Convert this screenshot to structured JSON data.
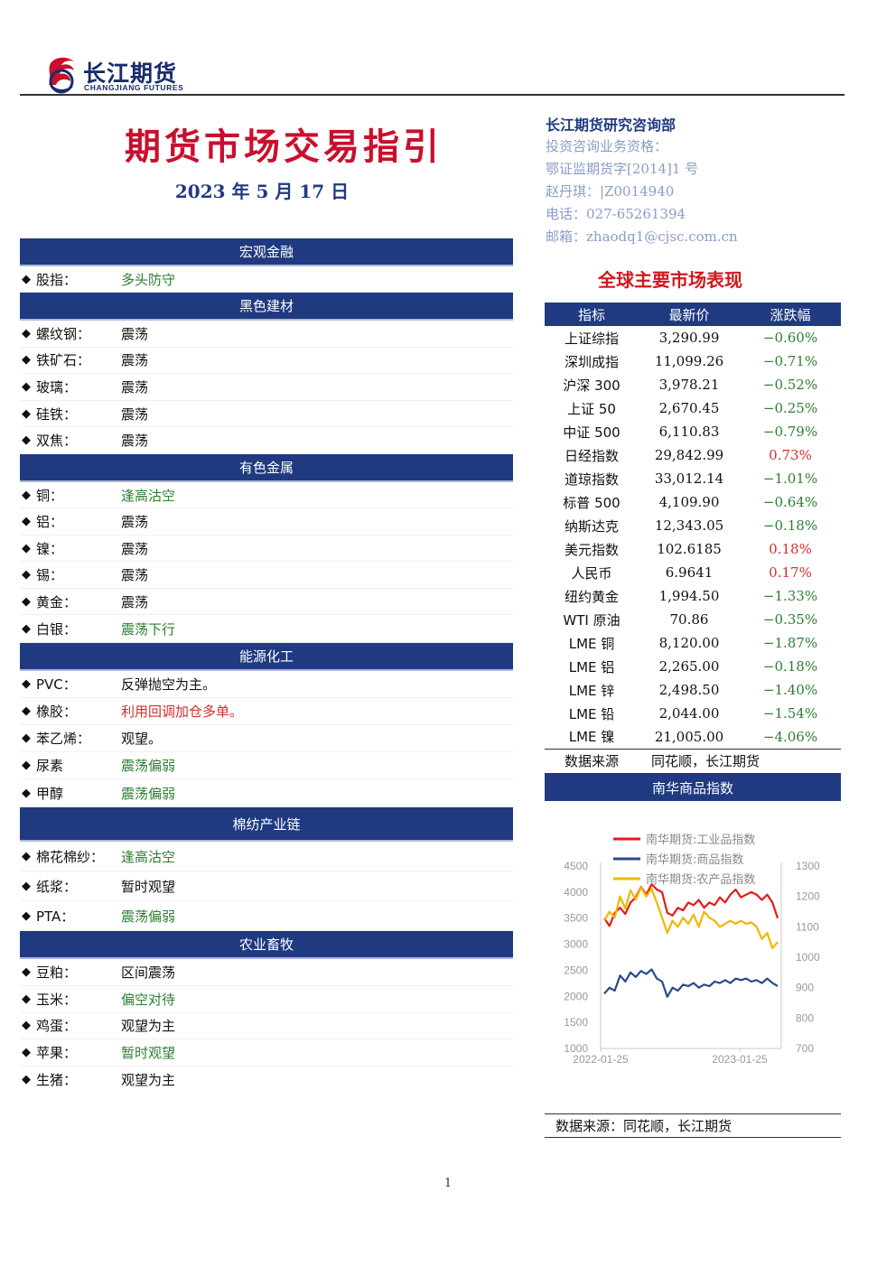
{
  "header": {
    "company_cn": "长江期货",
    "company_en": "CHANGJIANG FUTURES",
    "title": "期货市场交易指引",
    "date": "2023 年 5 月 17 日"
  },
  "contact": {
    "dept": "长江期货研究咨询部",
    "lines": [
      "投资咨询业务资格：",
      "鄂证监期货字[2014]1 号",
      "赵丹琪：|Z0014940",
      "电话：027-65261394",
      "邮箱：zhaodq1@cjsc.com.cn"
    ]
  },
  "sections": [
    {
      "title": "宏观金融",
      "items": [
        {
          "label": "股指：",
          "value": "多头防守",
          "color": "#2e7d32"
        }
      ]
    },
    {
      "title": "黑色建材",
      "items": [
        {
          "label": "螺纹钢：",
          "value": "震荡",
          "color": "#111111"
        },
        {
          "label": "铁矿石：",
          "value": "震荡",
          "color": "#111111"
        },
        {
          "label": "玻璃：",
          "value": "震荡",
          "color": "#111111"
        },
        {
          "label": "硅铁：",
          "value": "震荡",
          "color": "#111111"
        },
        {
          "label": "双焦：",
          "value": "震荡",
          "color": "#111111"
        }
      ]
    },
    {
      "title": "有色金属",
      "items": [
        {
          "label": "铜：",
          "value": "逢高沽空",
          "color": "#2e7d32"
        },
        {
          "label": "铝：",
          "value": "震荡",
          "color": "#111111"
        },
        {
          "label": "镍：",
          "value": "震荡",
          "color": "#111111"
        },
        {
          "label": "锡：",
          "value": "震荡",
          "color": "#111111"
        },
        {
          "label": "黄金：",
          "value": "震荡",
          "color": "#111111"
        },
        {
          "label": "白银：",
          "value": "震荡下行",
          "color": "#2e7d32"
        }
      ]
    },
    {
      "title": "能源化工",
      "items": [
        {
          "label": "PVC：",
          "value": "反弹抛空为主。",
          "color": "#111111"
        },
        {
          "label": "橡胶：",
          "value": "利用回调加仓多单。",
          "color": "#d32f2f"
        },
        {
          "label": "苯乙烯：",
          "value": "观望。",
          "color": "#111111"
        },
        {
          "label": "尿素",
          "value": "震荡偏弱",
          "color": "#2e7d32"
        },
        {
          "label": "甲醇",
          "value": "震荡偏弱",
          "color": "#2e7d32"
        }
      ]
    },
    {
      "title": "棉纺产业链",
      "items": [
        {
          "label": "棉花棉纱：",
          "value": "逢高沽空",
          "color": "#2e7d32"
        },
        {
          "label": "纸浆：",
          "value": "暂时观望",
          "color": "#111111"
        },
        {
          "label": "PTA：",
          "value": "震荡偏弱",
          "color": "#2e7d32"
        }
      ]
    },
    {
      "title": "农业畜牧",
      "items": [
        {
          "label": "豆粕：",
          "value": "区间震荡",
          "color": "#111111"
        },
        {
          "label": "玉米：",
          "value": "偏空对待",
          "color": "#2e7d32"
        },
        {
          "label": "鸡蛋：",
          "value": "观望为主",
          "color": "#111111"
        },
        {
          "label": "苹果：",
          "value": "暂时观望",
          "color": "#2e7d32"
        },
        {
          "label": "生猪：",
          "value": "观望为主",
          "color": "#111111"
        }
      ]
    }
  ],
  "market": {
    "title": "全球主要市场表现",
    "headers": [
      "指标",
      "最新价",
      "涨跌幅"
    ],
    "rows": [
      {
        "name": "上证综指",
        "price": "3,290.99",
        "change": "−0.60%",
        "dir": "down"
      },
      {
        "name": "深圳成指",
        "price": "11,099.26",
        "change": "−0.71%",
        "dir": "down"
      },
      {
        "name": "沪深 300",
        "price": "3,978.21",
        "change": "−0.52%",
        "dir": "down"
      },
      {
        "name": "上证 50",
        "price": "2,670.45",
        "change": "−0.25%",
        "dir": "down"
      },
      {
        "name": "中证 500",
        "price": "6,110.83",
        "change": "−0.79%",
        "dir": "down"
      },
      {
        "name": "日经指数",
        "price": "29,842.99",
        "change": "0.73%",
        "dir": "up"
      },
      {
        "name": "道琼指数",
        "price": "33,012.14",
        "change": "−1.01%",
        "dir": "down"
      },
      {
        "name": "标普 500",
        "price": "4,109.90",
        "change": "−0.64%",
        "dir": "down"
      },
      {
        "name": "纳斯达克",
        "price": "12,343.05",
        "change": "−0.18%",
        "dir": "down"
      },
      {
        "name": "美元指数",
        "price": "102.6185",
        "change": "0.18%",
        "dir": "up"
      },
      {
        "name": "人民币",
        "price": "6.9641",
        "change": "0.17%",
        "dir": "up"
      },
      {
        "name": "纽约黄金",
        "price": "1,994.50",
        "change": "−1.33%",
        "dir": "down"
      },
      {
        "name": "WTI 原油",
        "price": "70.86",
        "change": "−0.35%",
        "dir": "down"
      },
      {
        "name": "LME 铜",
        "price": "8,120.00",
        "change": "−1.87%",
        "dir": "down"
      },
      {
        "name": "LME 铝",
        "price": "2,265.00",
        "change": "−0.18%",
        "dir": "down"
      },
      {
        "name": "LME 锌",
        "price": "2,498.50",
        "change": "−1.40%",
        "dir": "down"
      },
      {
        "name": "LME 铅",
        "price": "2,044.00",
        "change": "−1.54%",
        "dir": "down"
      },
      {
        "name": "LME 镍",
        "price": "21,005.00",
        "change": "−4.06%",
        "dir": "down"
      }
    ],
    "source_label": "数据来源",
    "source_value": "同花顺，长江期货",
    "up_color": "#d32f2f",
    "down_color": "#2e7d32"
  },
  "nanhua": {
    "title": "南华商品指数",
    "source": "数据来源：同花顺，长江期货"
  },
  "chart_data": {
    "type": "line",
    "title": "",
    "x_ticks": [
      "2022-01-25",
      "2023-01-25"
    ],
    "y_left": {
      "ticks": [
        1000,
        1500,
        2000,
        2500,
        3000,
        3500,
        4000,
        4500
      ],
      "range": [
        1000,
        4500
      ]
    },
    "y_right": {
      "ticks": [
        700,
        800,
        900,
        1000,
        1100,
        1200,
        1300
      ],
      "range": [
        700,
        1300
      ]
    },
    "series": [
      {
        "name": "南华期货:工业品指数",
        "axis": "left",
        "color": "#e41a1c",
        "values": [
          3500,
          3350,
          3600,
          3700,
          3580,
          3800,
          3900,
          4100,
          3950,
          4150,
          4050,
          4000,
          3600,
          3550,
          3700,
          3650,
          3800,
          3750,
          3850,
          3700,
          3800,
          3750,
          3900,
          3800,
          3950,
          4050,
          3900,
          3950,
          4000,
          3950,
          3850,
          3950,
          3800,
          3500
        ]
      },
      {
        "name": "南华期货:商品指数",
        "axis": "right",
        "color": "#2b4a8c",
        "values": [
          880,
          900,
          890,
          940,
          920,
          950,
          935,
          955,
          945,
          960,
          930,
          920,
          870,
          900,
          890,
          910,
          905,
          915,
          900,
          910,
          905,
          920,
          915,
          925,
          915,
          930,
          925,
          930,
          920,
          925,
          915,
          930,
          915,
          905
        ]
      },
      {
        "name": "南华期货:农产品指数",
        "axis": "right",
        "color": "#f2b600",
        "values": [
          1120,
          1150,
          1130,
          1200,
          1160,
          1220,
          1190,
          1230,
          1200,
          1225,
          1180,
          1130,
          1080,
          1120,
          1100,
          1130,
          1110,
          1140,
          1100,
          1150,
          1130,
          1120,
          1100,
          1110,
          1120,
          1110,
          1120,
          1110,
          1115,
          1100,
          1060,
          1080,
          1030,
          1050
        ]
      }
    ]
  },
  "page": {
    "number": "1"
  }
}
